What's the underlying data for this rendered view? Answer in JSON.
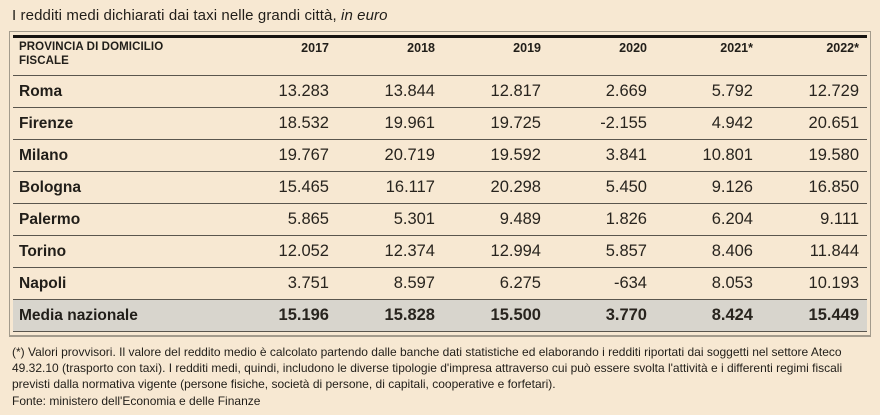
{
  "title": {
    "main": "I redditi medi dichiarati dai taxi nelle grandi città,",
    "suffix_italic": "in euro"
  },
  "table": {
    "header": {
      "col_label_line1": "PROVINCIA DI DOMICILIO",
      "col_label_line2": "FISCALE",
      "years": [
        "2017",
        "2018",
        "2019",
        "2020",
        "2021*",
        "2022*"
      ]
    },
    "rows": [
      {
        "label": "Roma",
        "values": [
          "13.283",
          "13.844",
          "12.817",
          "2.669",
          "5.792",
          "12.729"
        ]
      },
      {
        "label": "Firenze",
        "values": [
          "18.532",
          "19.961",
          "19.725",
          "-2.155",
          "4.942",
          "20.651"
        ]
      },
      {
        "label": "Milano",
        "values": [
          "19.767",
          "20.719",
          "19.592",
          "3.841",
          "10.801",
          "19.580"
        ]
      },
      {
        "label": "Bologna",
        "values": [
          "15.465",
          "16.117",
          "20.298",
          "5.450",
          "9.126",
          "16.850"
        ]
      },
      {
        "label": "Palermo",
        "values": [
          "5.865",
          "5.301",
          "9.489",
          "1.826",
          "6.204",
          "9.111"
        ]
      },
      {
        "label": "Torino",
        "values": [
          "12.052",
          "12.374",
          "12.994",
          "5.857",
          "8.406",
          "11.844"
        ]
      },
      {
        "label": "Napoli",
        "values": [
          "3.751",
          "8.597",
          "6.275",
          "-634",
          "8.053",
          "10.193"
        ]
      }
    ],
    "total_row": {
      "label": "Media nazionale",
      "values": [
        "15.196",
        "15.828",
        "15.500",
        "3.770",
        "8.424",
        "15.449"
      ]
    }
  },
  "footnote": {
    "note": "(*) Valori provvisori. Il valore del reddito medio è calcolato partendo dalle banche dati statistiche ed elaborando i redditi riportati dai soggetti nel settore Ateco 49.32.10 (trasporto con taxi). I redditi medi, quindi, includono le diverse tipologie d'impresa attraverso cui può essere svolta l'attività e i differenti regimi fiscali previsti dalla normativa vigente (persone fisiche, società di persone, di capitali, cooperative e forfetari).",
    "source": "Fonte: ministero dell'Economia e delle Finanze"
  },
  "colors": {
    "background": "#f7e8d2",
    "frame_border": "#a39b8c",
    "header_top_border": "#171411",
    "row_separator": "#5a564e",
    "total_row_background": "#d8d5cd",
    "text": "#211e19"
  },
  "chart_data": {
    "type": "table",
    "title": "I redditi medi dichiarati dai taxi nelle grandi città, in euro",
    "columns": [
      "PROVINCIA DI DOMICILIO FISCALE",
      "2017",
      "2018",
      "2019",
      "2020",
      "2021*",
      "2022*"
    ],
    "footnote_years_provisional": [
      "2021",
      "2022"
    ],
    "rows": [
      {
        "name": "Roma",
        "values_eur": [
          13283,
          13844,
          12817,
          2669,
          5792,
          12729
        ]
      },
      {
        "name": "Firenze",
        "values_eur": [
          18532,
          19961,
          19725,
          -2155,
          4942,
          20651
        ]
      },
      {
        "name": "Milano",
        "values_eur": [
          19767,
          20719,
          19592,
          3841,
          10801,
          19580
        ]
      },
      {
        "name": "Bologna",
        "values_eur": [
          15465,
          16117,
          20298,
          5450,
          9126,
          16850
        ]
      },
      {
        "name": "Palermo",
        "values_eur": [
          5865,
          5301,
          9489,
          1826,
          6204,
          9111
        ]
      },
      {
        "name": "Torino",
        "values_eur": [
          12052,
          12374,
          12994,
          5857,
          8406,
          11844
        ]
      },
      {
        "name": "Napoli",
        "values_eur": [
          3751,
          8597,
          6275,
          -634,
          8053,
          10193
        ]
      },
      {
        "name": "Media nazionale",
        "values_eur": [
          15196,
          15828,
          15500,
          3770,
          8424,
          15449
        ]
      }
    ],
    "source": "Fonte: ministero dell'Economia e delle Finanze"
  }
}
